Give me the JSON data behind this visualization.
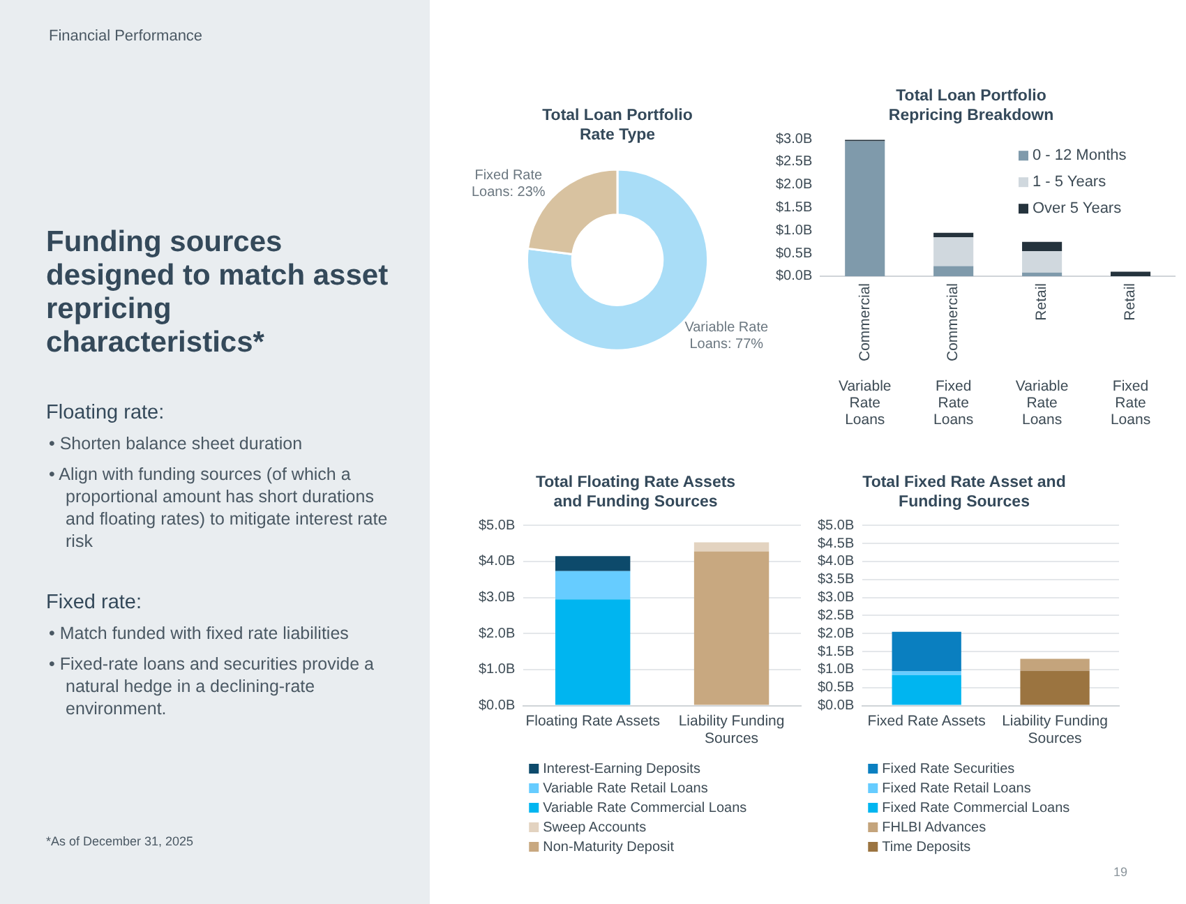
{
  "chart_data": [
    {
      "type": "other",
      "title": "Funding sources designed to match asset repricing characteristics*",
      "annotations": [
        "Financial Performance",
        "Floating rate:",
        "• Shorten balance sheet duration",
        "• Align with funding sources (of which a proportional amount has short durations and floating rates) to mitigate interest rate risk",
        "Fixed rate:",
        "• Match funded with fixed rate liabilities",
        "• Fixed-rate loans and securities provide a natural hedge in a declining-rate environment.",
        "*As of December 31, 2025",
        "19"
      ]
    },
    {
      "type": "donut",
      "title": "Total Loan Portfolio Rate Type",
      "categories": [
        "Variable Rate Loans",
        "Fixed Rate Loans"
      ],
      "values": [
        77,
        23
      ],
      "value_labels": [
        "77%",
        "23%"
      ],
      "colors": [
        "#a9ddf7",
        "#d8c2a0"
      ]
    },
    {
      "type": "bar",
      "title": "Total Loan Portfolio Repricing Breakdown",
      "categories": [
        "Commercial",
        "Commercial",
        "Retail",
        "Retail"
      ],
      "annotations": [
        "Variable Rate Loans",
        "Fixed Rate Loans",
        "Variable Rate Loans",
        "Fixed Rate Loans"
      ],
      "stacked": true,
      "legend": "top right",
      "ylim": [
        0,
        3
      ],
      "yticks": [
        {
          "value": 0,
          "label": "$0.0B"
        },
        {
          "value": 0.5,
          "label": "$0.5B"
        },
        {
          "value": 1,
          "label": "$1.0B"
        },
        {
          "value": 1.5,
          "label": "$1.5B"
        },
        {
          "value": 2,
          "label": "$2.0B"
        },
        {
          "value": 2.5,
          "label": "$2.5B"
        },
        {
          "value": 3,
          "label": "$3.0B"
        }
      ],
      "series": [
        {
          "name": "0 - 12 Months",
          "color": "#7f9aab",
          "values": [
            2.95,
            0.22,
            0.08,
            0
          ]
        },
        {
          "name": "1 - 5 Years",
          "color": "#d0d8de",
          "values": [
            0,
            0.63,
            0.47,
            0
          ]
        },
        {
          "name": "Over 5 Years",
          "color": "#25333d",
          "values": [
            0.03,
            0.1,
            0.2,
            0.1
          ]
        }
      ]
    },
    {
      "type": "bar",
      "title": "Total Floating Rate Assets and Funding Sources",
      "categories": [
        "Floating Rate Assets",
        "Liability Funding Sources"
      ],
      "stacked": true,
      "legend": "bottom",
      "grid": "y",
      "ylim": [
        0,
        5
      ],
      "yticks": [
        {
          "value": 0,
          "label": "$0.0B"
        },
        {
          "value": 1,
          "label": "$1.0B"
        },
        {
          "value": 2,
          "label": "$2.0B"
        },
        {
          "value": 3,
          "label": "$3.0B"
        },
        {
          "value": 4,
          "label": "$4.0B"
        },
        {
          "value": 5,
          "label": "$5.0B"
        }
      ],
      "series": [
        {
          "name": "Variable Rate Commercial Loans",
          "color": "#00b5f0",
          "values": [
            2.95,
            null
          ]
        },
        {
          "name": "Variable Rate Retail Loans",
          "color": "#66ccff",
          "values": [
            0.78,
            null
          ]
        },
        {
          "name": "Interest-Earning Deposits",
          "color": "#0d4a6b",
          "values": [
            0.42,
            null
          ]
        },
        {
          "name": "Non-Maturity Deposit",
          "color": "#c8a880",
          "values": [
            null,
            4.28
          ]
        },
        {
          "name": "Sweep Accounts",
          "color": "#e3d3c0",
          "values": [
            null,
            0.25
          ]
        }
      ]
    },
    {
      "type": "bar",
      "title": "Total Fixed Rate Asset and Funding Sources",
      "categories": [
        "Fixed Rate Assets",
        "Liability Funding Sources"
      ],
      "stacked": true,
      "legend": "bottom",
      "grid": "y",
      "ylim": [
        0,
        5
      ],
      "yticks": [
        {
          "value": 0,
          "label": "$0.0B"
        },
        {
          "value": 0.5,
          "label": "$0.5B"
        },
        {
          "value": 1,
          "label": "$1.0B"
        },
        {
          "value": 1.5,
          "label": "$1.5B"
        },
        {
          "value": 2,
          "label": "$2.0B"
        },
        {
          "value": 2.5,
          "label": "$2.5B"
        },
        {
          "value": 3,
          "label": "$3.0B"
        },
        {
          "value": 3.5,
          "label": "$3.5B"
        },
        {
          "value": 4,
          "label": "$4.0B"
        },
        {
          "value": 4.5,
          "label": "$4.5B"
        },
        {
          "value": 5,
          "label": "$5.0B"
        }
      ],
      "series": [
        {
          "name": "Fixed Rate Commercial Loans",
          "color": "#00b5f0",
          "values": [
            0.85,
            null
          ]
        },
        {
          "name": "Fixed Rate Retail Loans",
          "color": "#66ccff",
          "values": [
            0.1,
            null
          ]
        },
        {
          "name": "Fixed Rate Securities",
          "color": "#0a7fc0",
          "values": [
            1.1,
            null
          ]
        },
        {
          "name": "Time Deposits",
          "color": "#9b7440",
          "values": [
            null,
            0.97
          ]
        },
        {
          "name": "FHLBI Advances",
          "color": "#c4a47c",
          "values": [
            null,
            0.33
          ]
        }
      ]
    }
  ]
}
